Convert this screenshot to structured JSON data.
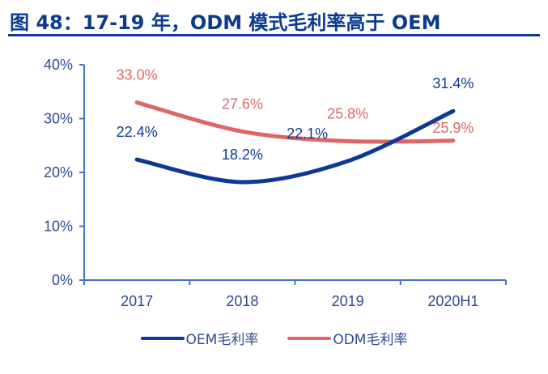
{
  "header": {
    "title": "图 48：17-19 年，ODM 模式毛利率高于 OEM"
  },
  "colors": {
    "title": "#0b3a8f",
    "axis": "#4472c4",
    "axis_text": "#2d4a94",
    "oem": "#0b3a94",
    "odm": "#e06666"
  },
  "chart_data": {
    "type": "line",
    "title": "17-19 年，ODM 模式毛利率高于 OEM",
    "xlabel": "",
    "ylabel": "",
    "categories": [
      "2017",
      "2018",
      "2019",
      "2020H1"
    ],
    "y_ticks": [
      "0%",
      "10%",
      "20%",
      "30%",
      "40%"
    ],
    "ylim": [
      0,
      40
    ],
    "grid": false,
    "smooth": true,
    "legend_position": "bottom",
    "series": [
      {
        "name": "OEM毛利率",
        "color": "#0b3a94",
        "values": [
          22.4,
          18.2,
          22.1,
          31.4
        ],
        "labels": [
          "22.4%",
          "18.2%",
          "22.1%",
          "31.4%"
        ]
      },
      {
        "name": "ODM毛利率",
        "color": "#e06666",
        "values": [
          33.0,
          27.6,
          25.8,
          25.9
        ],
        "labels": [
          "33.0%",
          "27.6%",
          "25.8%",
          "25.9%"
        ]
      }
    ]
  }
}
